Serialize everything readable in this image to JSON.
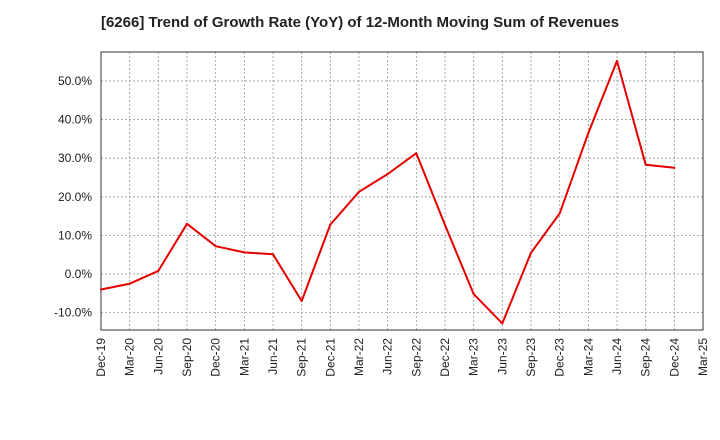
{
  "colors": {
    "line": "#e60000",
    "grid": "#999999",
    "axis": "#333333",
    "background": "#ffffff"
  },
  "chart_data": {
    "type": "line",
    "title": "[6266]  Trend of Growth Rate (YoY) of 12-Month Moving Sum of Revenues",
    "xlabel": "",
    "ylabel": "",
    "categories": [
      "Dec-19",
      "Mar-20",
      "Jun-20",
      "Sep-20",
      "Dec-20",
      "Mar-21",
      "Jun-21",
      "Sep-21",
      "Dec-21",
      "Mar-22",
      "Jun-22",
      "Sep-22",
      "Dec-22",
      "Mar-23",
      "Jun-23",
      "Sep-23",
      "Dec-23",
      "Mar-24",
      "Jun-24",
      "Sep-24",
      "Dec-24",
      "Mar-25"
    ],
    "series": [
      {
        "values": [
          -4.0,
          -2.5,
          0.8,
          13.0,
          7.2,
          5.6,
          5.1,
          -7.0,
          12.8,
          21.3,
          25.9,
          31.3,
          12.7,
          -5.2,
          -12.8,
          5.5,
          15.7,
          36.5,
          55.2,
          28.3,
          27.5,
          null
        ]
      }
    ],
    "y_ticks": [
      "-10.0%",
      "0.0%",
      "10.0%",
      "20.0%",
      "30.0%",
      "40.0%",
      "50.0%"
    ],
    "y_tick_values": [
      -10,
      0,
      10,
      20,
      30,
      40,
      50
    ],
    "ylim": [
      -14.5,
      57.5
    ],
    "grid": true,
    "legend": "none"
  }
}
